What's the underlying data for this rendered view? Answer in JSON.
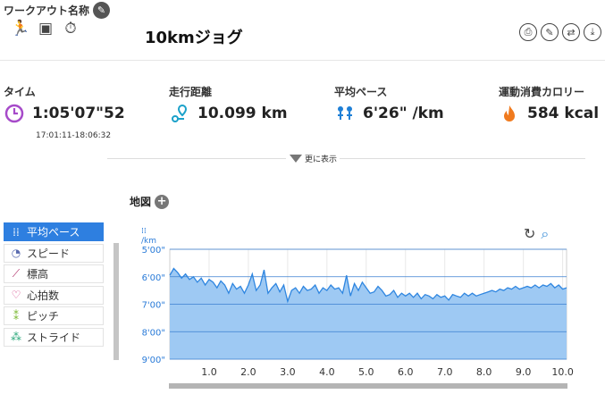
{
  "header": {
    "workout_label": "ワークアウト名称",
    "title": "10kmジョグ",
    "type_icons": [
      "runner-icon",
      "film-icon",
      "stopwatch-icon"
    ],
    "toolbar_icons": [
      "print-icon",
      "edit-icon",
      "swap-icon",
      "download-icon"
    ]
  },
  "stats": {
    "time": {
      "label": "タイム",
      "value": "1:05'07\"52",
      "range": "17:01:11-18:06:32"
    },
    "distance": {
      "label": "走行距離",
      "value": "10.099 km"
    },
    "pace": {
      "label": "平均ペース",
      "value": "6'26\" /km"
    },
    "calories": {
      "label": "運動消費カロリー",
      "value": "584 kcal"
    }
  },
  "more_label": "更に表示",
  "map_label": "地図",
  "menu": {
    "items": [
      {
        "label": "平均ペース",
        "icon": "pace-icon",
        "active": true
      },
      {
        "label": "スピード",
        "icon": "speedometer-icon",
        "active": false
      },
      {
        "label": "標高",
        "icon": "elevation-icon",
        "active": false
      },
      {
        "label": "心拍数",
        "icon": "heart-icon",
        "active": false
      },
      {
        "label": "ピッチ",
        "icon": "footsteps-icon",
        "active": false
      },
      {
        "label": "ストライド",
        "icon": "stride-icon",
        "active": false
      }
    ]
  },
  "colors": {
    "accent": "#2e7fe0",
    "time_icon": "#a64ac9",
    "distance_icon": "#1ba1c9",
    "pace_icon": "#1e7fd6",
    "calorie_icon": "#f07a1e",
    "chart_fill": "#9ec9f3",
    "chart_line": "#2f86e0"
  },
  "chart_data": {
    "type": "area",
    "unit_label": "/km",
    "y_ticks": [
      "5'00\"",
      "6'00\"",
      "7'00\"",
      "8'00\"",
      "9'00\""
    ],
    "ylim_min_per_km": [
      5,
      9
    ],
    "y_inverted": true,
    "x_ticks": [
      "1.0",
      "2.0",
      "3.0",
      "4.0",
      "5.0",
      "6.0",
      "7.0",
      "8.0",
      "9.0",
      "10.0"
    ],
    "xlim_km": [
      0,
      10.1
    ],
    "grid": true,
    "x": [
      0.0,
      0.1,
      0.2,
      0.3,
      0.4,
      0.5,
      0.6,
      0.7,
      0.8,
      0.9,
      1.0,
      1.1,
      1.2,
      1.3,
      1.4,
      1.5,
      1.6,
      1.7,
      1.8,
      1.9,
      2.0,
      2.1,
      2.2,
      2.3,
      2.4,
      2.5,
      2.6,
      2.7,
      2.8,
      2.9,
      3.0,
      3.1,
      3.2,
      3.3,
      3.4,
      3.5,
      3.6,
      3.7,
      3.8,
      3.9,
      4.0,
      4.1,
      4.2,
      4.3,
      4.4,
      4.5,
      4.6,
      4.7,
      4.8,
      4.9,
      5.0,
      5.1,
      5.2,
      5.3,
      5.4,
      5.5,
      5.6,
      5.7,
      5.8,
      5.9,
      6.0,
      6.1,
      6.2,
      6.3,
      6.4,
      6.5,
      6.6,
      6.7,
      6.8,
      6.9,
      7.0,
      7.1,
      7.2,
      7.3,
      7.4,
      7.5,
      7.6,
      7.7,
      7.8,
      7.9,
      8.0,
      8.1,
      8.2,
      8.3,
      8.4,
      8.5,
      8.6,
      8.7,
      8.8,
      8.9,
      9.0,
      9.1,
      9.2,
      9.3,
      9.4,
      9.5,
      9.6,
      9.7,
      9.8,
      9.9,
      10.0,
      10.1
    ],
    "pace_min_per_km": [
      5.95,
      5.7,
      5.85,
      6.05,
      5.9,
      6.1,
      6.0,
      6.2,
      6.05,
      6.3,
      6.1,
      6.2,
      6.4,
      6.15,
      6.3,
      6.6,
      6.25,
      6.45,
      6.35,
      6.6,
      6.3,
      5.9,
      6.5,
      6.3,
      5.75,
      6.6,
      6.4,
      6.25,
      6.55,
      6.3,
      6.9,
      6.5,
      6.4,
      6.6,
      6.35,
      6.5,
      6.45,
      6.3,
      6.6,
      6.4,
      6.5,
      6.3,
      6.45,
      6.4,
      6.6,
      5.95,
      6.7,
      6.25,
      6.5,
      6.2,
      6.4,
      6.6,
      6.55,
      6.35,
      6.5,
      6.7,
      6.65,
      6.5,
      6.75,
      6.6,
      6.7,
      6.6,
      6.75,
      6.6,
      6.8,
      6.65,
      6.7,
      6.8,
      6.65,
      6.75,
      6.7,
      6.85,
      6.65,
      6.7,
      6.75,
      6.6,
      6.7,
      6.6,
      6.7,
      6.65,
      6.6,
      6.55,
      6.5,
      6.55,
      6.45,
      6.5,
      6.4,
      6.45,
      6.35,
      6.45,
      6.4,
      6.35,
      6.4,
      6.3,
      6.4,
      6.3,
      6.35,
      6.25,
      6.4,
      6.3,
      6.45,
      6.4
    ]
  }
}
